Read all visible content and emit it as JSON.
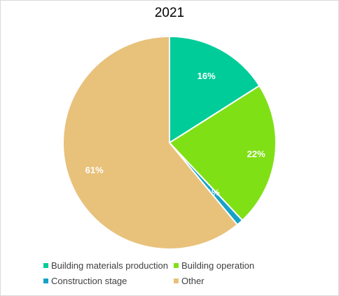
{
  "chart_data": {
    "type": "pie",
    "title": "2021",
    "slices": [
      {
        "label": "Building materials production",
        "value": 16,
        "display": "16%",
        "color": "#00cc99"
      },
      {
        "label": "Building operation",
        "value": 22,
        "display": "22%",
        "color": "#80e016"
      },
      {
        "label": "Construction stage",
        "value": 1,
        "display": "1%",
        "color": "#14a3c7"
      },
      {
        "label": "Other",
        "value": 61,
        "display": "61%",
        "color": "#e8c17b"
      }
    ],
    "legend_position": "bottom"
  }
}
